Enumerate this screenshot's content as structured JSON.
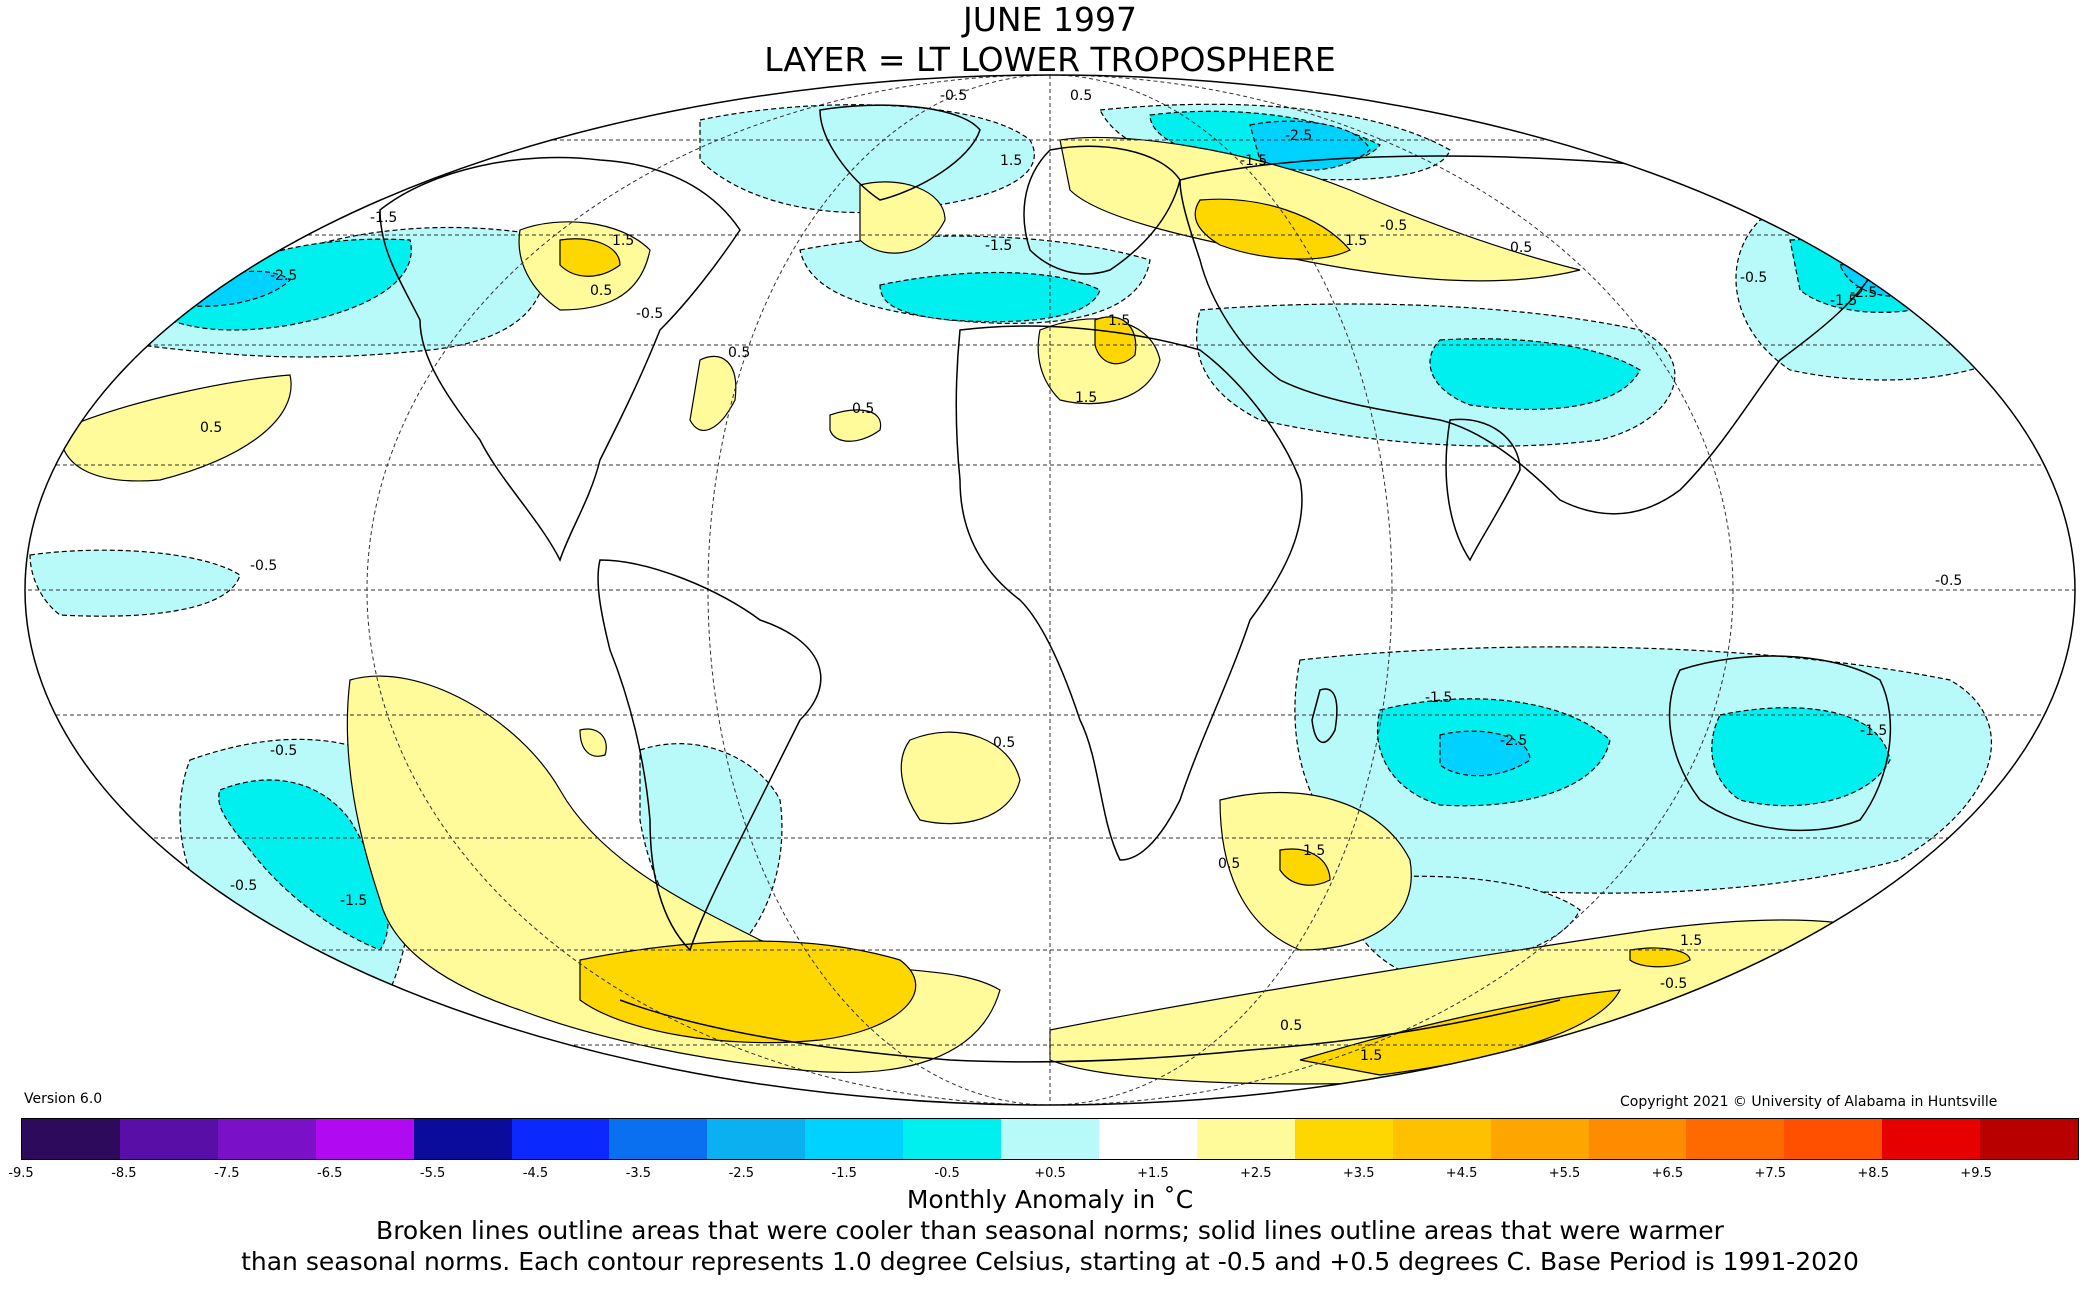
{
  "title": {
    "line1": "JUNE 1997",
    "line2": "LAYER = LT LOWER TROPOSPHERE"
  },
  "version": "Version 6.0",
  "copyright": "Copyright 2021 © University of Alabama in Huntsville",
  "colorbar": {
    "colors": [
      "#2e0a5c",
      "#5a0ea8",
      "#7a10c8",
      "#b10af0",
      "#0c0c9c",
      "#0a28ff",
      "#0a70f0",
      "#0ab0f0",
      "#00d2ff",
      "#00f0f0",
      "#b8fafa",
      "#ffffff",
      "#fffa9a",
      "#ffd700",
      "#ffc000",
      "#ffa500",
      "#ff8c00",
      "#ff6a00",
      "#ff5000",
      "#e60000",
      "#b90000"
    ],
    "ticks": [
      "-9.5",
      "-8.5",
      "-7.5",
      "-6.5",
      "-5.5",
      "-4.5",
      "-3.5",
      "-2.5",
      "-1.5",
      "-0.5",
      "+0.5",
      "+1.5",
      "+2.5",
      "+3.5",
      "+4.5",
      "+5.5",
      "+6.5",
      "+7.5",
      "+8.5",
      "+9.5"
    ],
    "tick_values": [
      -9.5,
      -8.5,
      -7.5,
      -6.5,
      -5.5,
      -4.5,
      -3.5,
      -2.5,
      -1.5,
      -0.5,
      0.5,
      1.5,
      2.5,
      3.5,
      4.5,
      5.5,
      6.5,
      7.5,
      8.5,
      9.5
    ]
  },
  "unit_label": "Monthly Anomaly in ˚C",
  "footnote": {
    "line1": "Broken lines outline areas that were cooler than seasonal norms; solid lines outline areas that were warmer",
    "line2": "than seasonal norms. Each contour represents 1.0 degree Celsius, starting at -0.5 and +0.5 degrees C. Base Period is 1991-2020"
  },
  "map": {
    "projection": "Mollweide",
    "anomaly_colors": {
      "cool_0_5": "#b8fafa",
      "cool_1_5": "#00f0f0",
      "cool_2_5": "#00d2ff",
      "warm_0_5": "#fffa9a",
      "warm_1_5": "#ffd700"
    },
    "contour_labels": [
      "-0.5",
      "0.5",
      "-1.5",
      "1.5",
      "-2.5",
      "0.5",
      "-0.5",
      "-1.5",
      "1.5",
      "-2.5",
      "0.5",
      "-0.5",
      "-1.5",
      "1.5",
      "0.5",
      "-0.5",
      "-2.5",
      "1.5",
      "0.5",
      "-1.5",
      "-0.5",
      "1.5",
      "0.5",
      "-0.5",
      "1.5",
      "-1.5",
      "0.5",
      "-0.5",
      "1.5",
      "-2.5",
      "-1.5",
      "0.5",
      "-1.5",
      "-0.5",
      "1.5",
      "0.5",
      "-0.5"
    ]
  }
}
